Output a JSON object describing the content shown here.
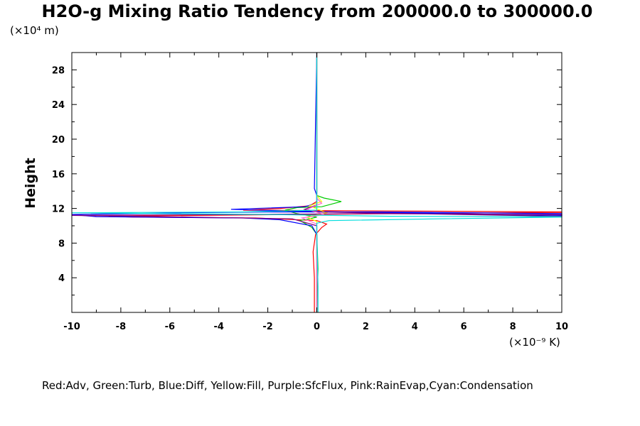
{
  "chart_data": {
    "type": "line",
    "title": "H2O-g Mixing Ratio Tendency from 200000.0 to 300000.0",
    "ylabel": "Height",
    "y_unit_text": "(×10⁴ m)",
    "x_unit_text": "(×10⁻⁹ K)",
    "legend_text": "Red:Adv, Green:Turb, Blue:Diff, Yellow:Fill, Purple:SfcFlux, Pink:RainEvap,Cyan:Condensation",
    "xlim": [
      -10,
      10
    ],
    "ylim": [
      0,
      30
    ],
    "x_ticks": [
      -10,
      -8,
      -6,
      -4,
      -2,
      0,
      2,
      4,
      6,
      8,
      10
    ],
    "y_ticks": [
      4,
      8,
      12,
      16,
      20,
      24,
      28
    ],
    "x_tick_labels": [
      "-10",
      "-8",
      "-6",
      "-4",
      "-2",
      "0",
      "2",
      "4",
      "6",
      "8",
      "10"
    ],
    "y_tick_labels": [
      "4",
      "8",
      "12",
      "16",
      "20",
      "24",
      "28"
    ],
    "grid": false,
    "series": [
      {
        "name": "Adv",
        "color": "#ff0000",
        "points": [
          [
            -0.1,
            0.0
          ],
          [
            -0.1,
            4.0
          ],
          [
            -0.15,
            7.0
          ],
          [
            -0.05,
            9.0
          ],
          [
            0.2,
            9.8
          ],
          [
            0.4,
            10.2
          ],
          [
            0.0,
            10.6
          ],
          [
            -2.5,
            10.9
          ],
          [
            -7.5,
            11.0
          ],
          [
            -8.5,
            11.1
          ],
          [
            -5.0,
            11.2
          ],
          [
            -1.0,
            11.3
          ],
          [
            3.0,
            11.4
          ],
          [
            10.0,
            11.55
          ],
          [
            10.0,
            11.6
          ],
          [
            -3.0,
            11.8
          ],
          [
            -1.5,
            12.0
          ],
          [
            -0.3,
            12.3
          ],
          [
            0.0,
            12.8
          ],
          [
            0.0,
            14.0
          ],
          [
            0.0,
            30.0
          ]
        ]
      },
      {
        "name": "Turb",
        "color": "#00cc00",
        "points": [
          [
            0.0,
            0.0
          ],
          [
            0.05,
            5.0
          ],
          [
            0.0,
            9.0
          ],
          [
            -0.2,
            9.8
          ],
          [
            -0.5,
            10.3
          ],
          [
            -0.7,
            10.6
          ],
          [
            -0.3,
            10.8
          ],
          [
            0.0,
            11.0
          ],
          [
            -0.8,
            11.4
          ],
          [
            -1.3,
            11.8
          ],
          [
            -0.8,
            12.1
          ],
          [
            0.2,
            12.2
          ],
          [
            1.0,
            12.8
          ],
          [
            0.3,
            13.2
          ],
          [
            0.0,
            13.5
          ],
          [
            0.0,
            30.0
          ]
        ]
      },
      {
        "name": "Diff",
        "color": "#0000ff",
        "points": [
          [
            0.0,
            0.0
          ],
          [
            0.0,
            9.0
          ],
          [
            -0.2,
            10.0
          ],
          [
            -1.5,
            10.7
          ],
          [
            -3.0,
            10.9
          ],
          [
            -9.0,
            11.05
          ],
          [
            -10.0,
            11.3
          ],
          [
            -5.5,
            11.5
          ],
          [
            -2.0,
            11.6
          ],
          [
            2.5,
            11.6
          ],
          [
            10.0,
            11.4
          ],
          [
            10.0,
            11.2
          ],
          [
            -1.0,
            11.7
          ],
          [
            -3.5,
            11.9
          ],
          [
            -0.5,
            12.2
          ],
          [
            0.0,
            12.6
          ],
          [
            0.0,
            13.5
          ],
          [
            -0.1,
            14.3
          ],
          [
            0.0,
            30.0
          ]
        ]
      },
      {
        "name": "Fill",
        "color": "#ffff00",
        "points": [
          [
            0.0,
            0.0
          ],
          [
            0.0,
            10.5
          ],
          [
            -0.4,
            11.0
          ],
          [
            0.4,
            11.5
          ],
          [
            -0.3,
            12.3
          ],
          [
            0.2,
            12.8
          ],
          [
            0.0,
            13.5
          ],
          [
            0.0,
            30.0
          ]
        ]
      },
      {
        "name": "SfcFlux",
        "color": "#800080",
        "points": [
          [
            0.0,
            0.0
          ],
          [
            0.0,
            10.0
          ],
          [
            -1.0,
            10.8
          ],
          [
            -5.0,
            11.0
          ],
          [
            -10.0,
            11.2
          ],
          [
            -3.0,
            11.3
          ],
          [
            2.0,
            11.4
          ],
          [
            10.0,
            11.3
          ],
          [
            10.0,
            11.1
          ],
          [
            0.0,
            11.6
          ],
          [
            -0.5,
            11.9
          ],
          [
            0.0,
            12.4
          ],
          [
            0.0,
            30.0
          ]
        ]
      },
      {
        "name": "RainEvap",
        "color": "#ff66cc",
        "points": [
          [
            0.0,
            0.0
          ],
          [
            0.0,
            10.2
          ],
          [
            -0.6,
            10.9
          ],
          [
            0.3,
            11.3
          ],
          [
            -0.4,
            11.9
          ],
          [
            0.2,
            12.6
          ],
          [
            0.0,
            13.2
          ],
          [
            0.0,
            30.0
          ]
        ]
      },
      {
        "name": "Condensation",
        "color": "#00dddd",
        "points": [
          [
            0.05,
            0.0
          ],
          [
            0.05,
            3.0
          ],
          [
            0.0,
            9.0
          ],
          [
            0.0,
            10.3
          ],
          [
            0.5,
            10.6
          ],
          [
            5.0,
            10.8
          ],
          [
            10.0,
            11.0
          ],
          [
            10.0,
            11.05
          ],
          [
            3.0,
            11.1
          ],
          [
            -2.0,
            11.3
          ],
          [
            -10.0,
            11.5
          ],
          [
            -3.0,
            11.6
          ],
          [
            0.0,
            11.8
          ],
          [
            0.0,
            30.0
          ]
        ]
      }
    ]
  }
}
